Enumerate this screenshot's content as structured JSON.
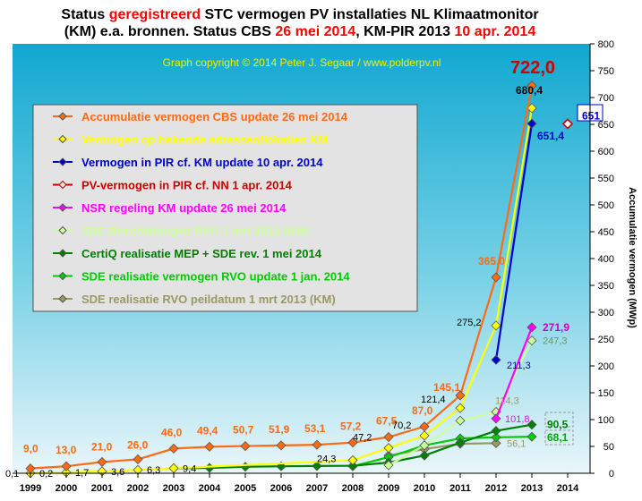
{
  "title": {
    "line1": [
      {
        "text": "Status ",
        "color": "#000000"
      },
      {
        "text": "geregistreerd",
        "color": "#ff0000"
      },
      {
        "text": " STC vermogen PV installaties  NL Klimaatmonitor",
        "color": "#000000"
      }
    ],
    "line2": [
      {
        "text": "(KM) e.a. bronnen. Status CBS ",
        "color": "#000000"
      },
      {
        "text": "26 mei 2014",
        "color": "#ff0000"
      },
      {
        "text": ", KM-PIR 2013 ",
        "color": "#000000"
      },
      {
        "text": "10 apr. 2014",
        "color": "#ff0000"
      }
    ]
  },
  "copyright": "Graph copyright © 2014 Peter J. Segaar / www.polderpv.nl",
  "chart_data": {
    "type": "line",
    "x": [
      1999,
      2000,
      2001,
      2002,
      2003,
      2004,
      2005,
      2006,
      2007,
      2008,
      2009,
      2010,
      2011,
      2012,
      2013,
      2014
    ],
    "xlabel": "",
    "ylabel": "Accumulatie vermogen (MWp)",
    "ylim": [
      0,
      800
    ],
    "y_ticks": [
      0,
      50,
      100,
      150,
      200,
      250,
      300,
      350,
      400,
      450,
      500,
      550,
      600,
      650,
      700,
      750,
      800
    ],
    "grid": false,
    "legend_position": "upper-left",
    "series": [
      {
        "name": "Accumulatie vermogen CBS update 26 mei 2014",
        "color": "#ff6a13",
        "marker": "diamond",
        "points": [
          [
            1999,
            9.0
          ],
          [
            2000,
            13.0
          ],
          [
            2001,
            21.0
          ],
          [
            2002,
            26.0
          ],
          [
            2003,
            46.0
          ],
          [
            2004,
            49.4
          ],
          [
            2005,
            50.7
          ],
          [
            2006,
            51.9
          ],
          [
            2007,
            53.1
          ],
          [
            2008,
            57.2
          ],
          [
            2009,
            67.5
          ],
          [
            2010,
            87.0
          ],
          [
            2011,
            145.1
          ],
          [
            2012,
            365.0
          ],
          [
            2013,
            722.0
          ]
        ]
      },
      {
        "name": "Vermogen op bekende adressen/lokaties KM",
        "color": "#ffff00",
        "marker": "diamond",
        "points": [
          [
            1999,
            0.2
          ],
          [
            2000,
            1.7
          ],
          [
            2001,
            3.6
          ],
          [
            2002,
            6.3
          ],
          [
            2003,
            9.4
          ],
          [
            2008,
            24.3
          ],
          [
            2009,
            47.2
          ],
          [
            2010,
            70.2
          ],
          [
            2011,
            121.4
          ],
          [
            2012,
            275.2
          ],
          [
            2013,
            680.4
          ]
        ]
      },
      {
        "name": "Vermogen in PIR cf. KM update 10 apr. 2014",
        "color": "#0000cc",
        "marker": "diamond",
        "points": [
          [
            2012,
            211.3
          ],
          [
            2013,
            651.4
          ]
        ]
      },
      {
        "name": "PV-vermogen in PIR cf. NN 1 apr. 2014",
        "color": "#cc0000",
        "marker": "open-diamond",
        "points": [
          [
            2014,
            651
          ]
        ]
      },
      {
        "name": "NSR regeling KM update 26 mei 2014",
        "color": "#ff00ff",
        "marker": "diamond",
        "points": [
          [
            2012,
            101.8
          ],
          [
            2013,
            271.9
          ]
        ]
      },
      {
        "name": "SDE Beschikkingen RVO 1 mrt 2013 (KM)",
        "color": "#ccff99",
        "marker": "diamond",
        "points": [
          [
            2009,
            15.0
          ],
          [
            2010,
            52.0
          ],
          [
            2011,
            98.0
          ],
          [
            2012,
            114.3
          ],
          [
            2013,
            247.3
          ]
        ]
      },
      {
        "name": "CertiQ realisatie MEP + SDE rev. 1 mei 2014",
        "color": "#008000",
        "marker": "diamond",
        "points": [
          [
            2003,
            9.4
          ],
          [
            2004,
            10.0
          ],
          [
            2005,
            12.0
          ],
          [
            2006,
            13.0
          ],
          [
            2007,
            13.5
          ],
          [
            2008,
            14.0
          ],
          [
            2009,
            20.0
          ],
          [
            2010,
            33.0
          ],
          [
            2011,
            57.0
          ],
          [
            2012,
            79.0
          ],
          [
            2013,
            90.5
          ]
        ]
      },
      {
        "name": "SDE realisatie vermogen RVO update 1 jan. 2014",
        "color": "#00cc00",
        "marker": "diamond",
        "points": [
          [
            2008,
            13.0
          ],
          [
            2009,
            30.0
          ],
          [
            2010,
            52.0
          ],
          [
            2011,
            65.0
          ],
          [
            2012,
            67.0
          ],
          [
            2013,
            68.1
          ]
        ]
      },
      {
        "name": "SDE realisatie RVO peildatum 1 mrt 2013 (KM)",
        "color": "#999966",
        "marker": "diamond",
        "points": [
          [
            2009,
            33.0
          ],
          [
            2010,
            45.0
          ],
          [
            2011,
            55.0
          ],
          [
            2012,
            56.1
          ]
        ]
      }
    ],
    "data_labels": [
      {
        "text": "0,1",
        "x": 1999,
        "y": 0.1,
        "color": "#000000"
      },
      {
        "text": "9,0",
        "x": 1999,
        "y": 9.0,
        "color": "#ff6a13"
      },
      {
        "text": "13,0",
        "x": 2000,
        "y": 13.0,
        "color": "#ff6a13"
      },
      {
        "text": "21,0",
        "x": 2001,
        "y": 21.0,
        "color": "#ff6a13"
      },
      {
        "text": "26,0",
        "x": 2002,
        "y": 26.0,
        "color": "#ff6a13"
      },
      {
        "text": "46,0",
        "x": 2003,
        "y": 46.0,
        "color": "#ff6a13"
      },
      {
        "text": "49,4",
        "x": 2004,
        "y": 49.4,
        "color": "#ff6a13"
      },
      {
        "text": "50,7",
        "x": 2005,
        "y": 50.7,
        "color": "#ff6a13"
      },
      {
        "text": "51,9",
        "x": 2006,
        "y": 51.9,
        "color": "#ff6a13"
      },
      {
        "text": "53,1",
        "x": 2007,
        "y": 53.1,
        "color": "#ff6a13"
      },
      {
        "text": "57,2",
        "x": 2008,
        "y": 57.2,
        "color": "#ff6a13"
      },
      {
        "text": "67,5",
        "x": 2009,
        "y": 67.5,
        "color": "#ff6a13"
      },
      {
        "text": "87,0",
        "x": 2010,
        "y": 87.0,
        "color": "#ff6a13"
      },
      {
        "text": "145,1",
        "x": 2011,
        "y": 145.1,
        "color": "#ff6a13"
      },
      {
        "text": "365,0",
        "x": 2012,
        "y": 365.0,
        "color": "#ff6a13"
      },
      {
        "text": "722,0",
        "x": 2013,
        "y": 722.0,
        "color": "#cc0000"
      },
      {
        "text": "0,2",
        "x": 1999,
        "y": 0.2,
        "color": "#000000"
      },
      {
        "text": "1,7",
        "x": 2000,
        "y": 1.7,
        "color": "#000000"
      },
      {
        "text": "3,6",
        "x": 2001,
        "y": 3.6,
        "color": "#000000"
      },
      {
        "text": "6,3",
        "x": 2002,
        "y": 6.3,
        "color": "#000000"
      },
      {
        "text": "9,4",
        "x": 2003,
        "y": 9.4,
        "color": "#000000"
      },
      {
        "text": "24,3",
        "x": 2008,
        "y": 24.3,
        "color": "#000000"
      },
      {
        "text": "47,2",
        "x": 2009,
        "y": 47.2,
        "color": "#000000"
      },
      {
        "text": "70,2",
        "x": 2010,
        "y": 70.2,
        "color": "#000000"
      },
      {
        "text": "121,4",
        "x": 2011,
        "y": 121.4,
        "color": "#000000"
      },
      {
        "text": "275,2",
        "x": 2012,
        "y": 275.2,
        "color": "#000000"
      },
      {
        "text": "680,4",
        "x": 2013,
        "y": 680.4,
        "color": "#000000"
      },
      {
        "text": "211,3",
        "x": 2012,
        "y": 211.3,
        "color": "#0000cc"
      },
      {
        "text": "651,4",
        "x": 2013,
        "y": 651.4,
        "color": "#0000cc"
      },
      {
        "text": "651",
        "x": 2014,
        "y": 651,
        "color": "#0000cc"
      },
      {
        "text": "101,8",
        "x": 2012,
        "y": 101.8,
        "color": "#ff00ff"
      },
      {
        "text": "271,9",
        "x": 2013,
        "y": 271.9,
        "color": "#cc00cc"
      },
      {
        "text": "114,3",
        "x": 2012,
        "y": 114.3,
        "color": "#999966"
      },
      {
        "text": "247,3",
        "x": 2013,
        "y": 247.3,
        "color": "#669966"
      },
      {
        "text": "90,5",
        "x": 2013,
        "y": 90.5,
        "color": "#008000"
      },
      {
        "text": "68,1",
        "x": 2013,
        "y": 68.1,
        "color": "#00aa00"
      },
      {
        "text": "56,1",
        "x": 2012,
        "y": 56.1,
        "color": "#999966"
      }
    ]
  }
}
